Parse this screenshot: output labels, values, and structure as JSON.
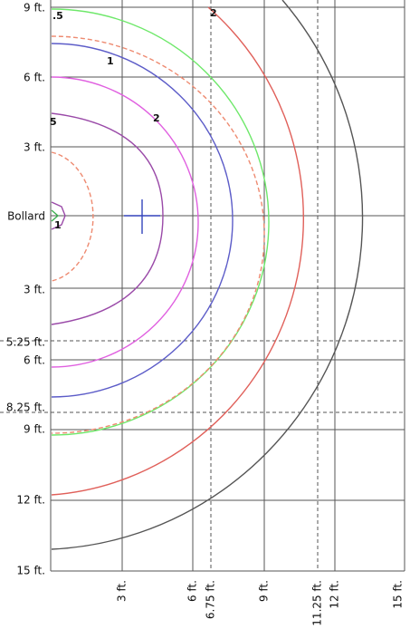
{
  "y_labels": [
    "9 ft.",
    "6 ft.",
    "3 ft.",
    "Bollard",
    "3 ft.",
    "5.25 ft.",
    "6 ft.",
    "8.25 ft.",
    "9 ft.",
    "12 ft.",
    "15 ft."
  ],
  "x_labels": [
    "3 ft.",
    "6 ft.",
    "6.75 ft.",
    "9 ft.",
    "11.25 ft.",
    "12 ft.",
    "15 ft."
  ],
  "contour_labels": [
    ".5",
    "2",
    "1",
    "2",
    "5",
    "1"
  ]
}
